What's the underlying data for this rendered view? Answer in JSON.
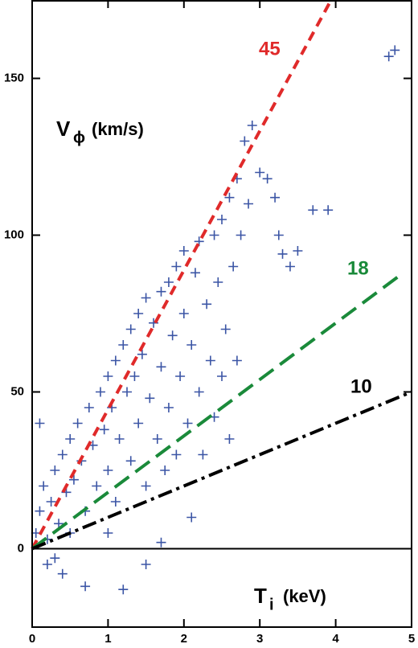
{
  "chart_data": {
    "type": "scatter",
    "xlim": [
      0,
      5
    ],
    "ylim": [
      -25,
      175
    ],
    "xticks": [
      0,
      1,
      2,
      3,
      4,
      5
    ],
    "yticks": [
      0,
      50,
      100,
      150
    ],
    "y_label": {
      "main": "V",
      "sub": "ϕ",
      "unit": "(km/s)"
    },
    "x_label": {
      "main": "T",
      "sub": "i",
      "unit": "(keV)"
    },
    "hline": 0,
    "points": {
      "color": "#3b55a5",
      "x": [
        0.05,
        0.1,
        0.15,
        0.2,
        0.25,
        0.3,
        0.35,
        0.4,
        0.45,
        0.5,
        0.5,
        0.55,
        0.6,
        0.65,
        0.7,
        0.75,
        0.8,
        0.85,
        0.9,
        0.95,
        1.0,
        1.0,
        1.05,
        1.1,
        1.1,
        1.15,
        1.2,
        1.25,
        1.3,
        1.3,
        1.35,
        1.4,
        1.4,
        1.45,
        1.5,
        1.5,
        1.55,
        1.6,
        1.65,
        1.7,
        1.7,
        1.75,
        1.8,
        1.8,
        1.85,
        1.9,
        1.9,
        1.95,
        2.0,
        2.0,
        2.05,
        2.1,
        2.15,
        2.2,
        2.2,
        2.25,
        2.3,
        2.35,
        2.4,
        2.4,
        2.45,
        2.5,
        2.5,
        2.55,
        2.6,
        2.6,
        2.65,
        2.7,
        2.7,
        2.75,
        2.8,
        2.85,
        2.9,
        3.0,
        3.1,
        3.2,
        3.25,
        3.3,
        3.4,
        3.5,
        3.7,
        3.9,
        4.7,
        4.78,
        0.1,
        0.2,
        0.4,
        0.7,
        1.2,
        1.5,
        1.7,
        1.0,
        0.3,
        2.1
      ],
      "values": [
        5,
        12,
        20,
        3,
        15,
        25,
        8,
        30,
        18,
        35,
        5,
        22,
        40,
        28,
        12,
        45,
        33,
        20,
        50,
        38,
        55,
        25,
        45,
        60,
        15,
        35,
        65,
        50,
        70,
        28,
        55,
        75,
        40,
        62,
        80,
        20,
        48,
        72,
        35,
        82,
        58,
        25,
        85,
        45,
        68,
        90,
        30,
        55,
        95,
        75,
        40,
        65,
        88,
        50,
        98,
        30,
        78,
        60,
        100,
        42,
        85,
        105,
        55,
        70,
        112,
        35,
        90,
        118,
        60,
        100,
        130,
        110,
        135,
        120,
        118,
        112,
        100,
        94,
        90,
        95,
        108,
        108,
        157,
        159,
        40,
        -5,
        -8,
        -12,
        -13,
        -5,
        2,
        5,
        -3,
        10
      ]
    },
    "series": [
      {
        "name": "45",
        "color": "#e02a2a",
        "dash": "12 8",
        "x": [
          0,
          3.94
        ],
        "values": [
          0,
          175
        ]
      },
      {
        "name": "18",
        "color": "#1a8a3a",
        "dash": "22 10",
        "x": [
          0,
          4.82
        ],
        "values": [
          0,
          86.7
        ]
      },
      {
        "name": "10",
        "color": "#000000",
        "dash": "18 6 4 6",
        "x": [
          0,
          5
        ],
        "values": [
          0,
          50
        ]
      }
    ]
  }
}
